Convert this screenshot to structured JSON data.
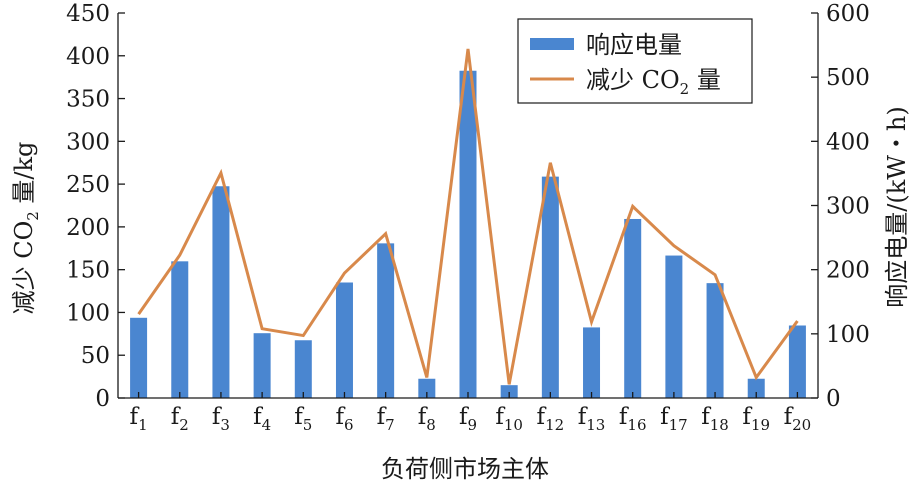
{
  "chart_data": {
    "type": "bar",
    "xlabel": "负荷侧市场主体",
    "ylabel_left": {
      "main": "减少 CO",
      "sub": "2",
      "tail": " 量/kg"
    },
    "ylabel_right": "响应电量/(kW・h)",
    "categories": [
      {
        "base": "f",
        "sub": "1"
      },
      {
        "base": "f",
        "sub": "2"
      },
      {
        "base": "f",
        "sub": "3"
      },
      {
        "base": "f",
        "sub": "4"
      },
      {
        "base": "f",
        "sub": "5"
      },
      {
        "base": "f",
        "sub": "6"
      },
      {
        "base": "f",
        "sub": "7"
      },
      {
        "base": "f",
        "sub": "8"
      },
      {
        "base": "f",
        "sub": "9"
      },
      {
        "base": "f",
        "sub": "10"
      },
      {
        "base": "f",
        "sub": "12"
      },
      {
        "base": "f",
        "sub": "13"
      },
      {
        "base": "f",
        "sub": "16"
      },
      {
        "base": "f",
        "sub": "17"
      },
      {
        "base": "f",
        "sub": "18"
      },
      {
        "base": "f",
        "sub": "19"
      },
      {
        "base": "f",
        "sub": "20"
      }
    ],
    "left_axis": {
      "min": 0,
      "max": 450,
      "ticks": [
        0,
        50,
        100,
        150,
        200,
        250,
        300,
        350,
        400,
        450
      ]
    },
    "right_axis": {
      "min": 0,
      "max": 600,
      "ticks": [
        0,
        100,
        200,
        300,
        400,
        500,
        600
      ]
    },
    "grid": false,
    "legend_position": "top-right",
    "series": [
      {
        "name": "响应电量",
        "kind": "bar",
        "axis": "right",
        "color": "#4a86d0",
        "values": [
          125,
          213,
          330,
          101,
          90,
          180,
          241,
          30,
          510,
          20,
          345,
          110,
          279,
          222,
          179,
          30,
          113
        ]
      },
      {
        "name": "减少 CO2 量",
        "legend": {
          "main": "减少 CO",
          "sub": "2",
          "tail": " 量"
        },
        "kind": "line",
        "axis": "left",
        "color": "#d8894b",
        "values": [
          98,
          167,
          263,
          81,
          73,
          146,
          192,
          24,
          408,
          16,
          275,
          89,
          224,
          178,
          144,
          24,
          90
        ]
      }
    ]
  }
}
